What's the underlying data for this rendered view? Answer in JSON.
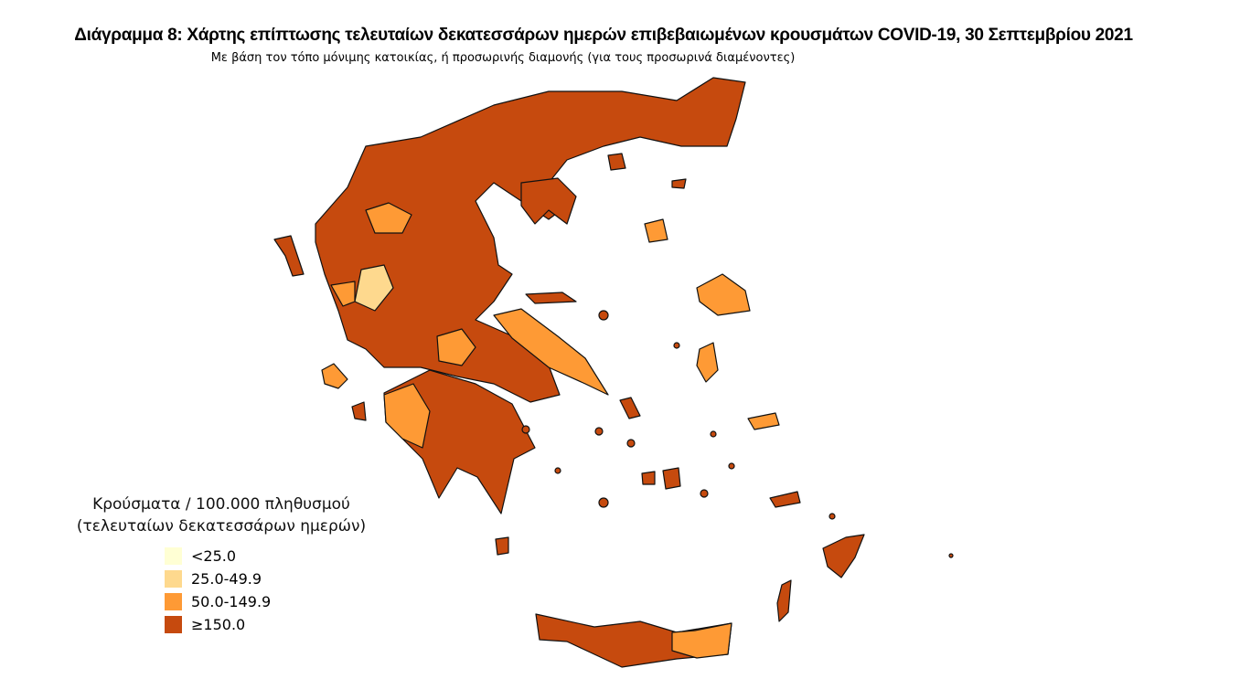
{
  "title": "Διάγραμμα 8: Χάρτης επίπτωσης τελευταίων δεκατεσσάρων ημερών επιβεβαιωμένων κρουσμάτων COVID-19, 30 Σεπτεμβρίου 2021",
  "subtitle": "Με βάση τον τόπο μόνιμης κατοικίας, ή προσωρινής διαμονής (για τους προσωρινά διαμένοντες)",
  "legend": {
    "title_line1": "Κρούσματα / 100.000 πληθυσμού",
    "title_line2": "(τελευταίων δεκατεσσάρων ημερών)",
    "items": [
      {
        "label": "<25.0",
        "color": "#FFFFD4"
      },
      {
        "label": "25.0-49.9",
        "color": "#FED98E"
      },
      {
        "label": "50.0-149.9",
        "color": "#FE9A35"
      },
      {
        "label": "≥150.0",
        "color": "#C64A0E"
      }
    ]
  }
}
